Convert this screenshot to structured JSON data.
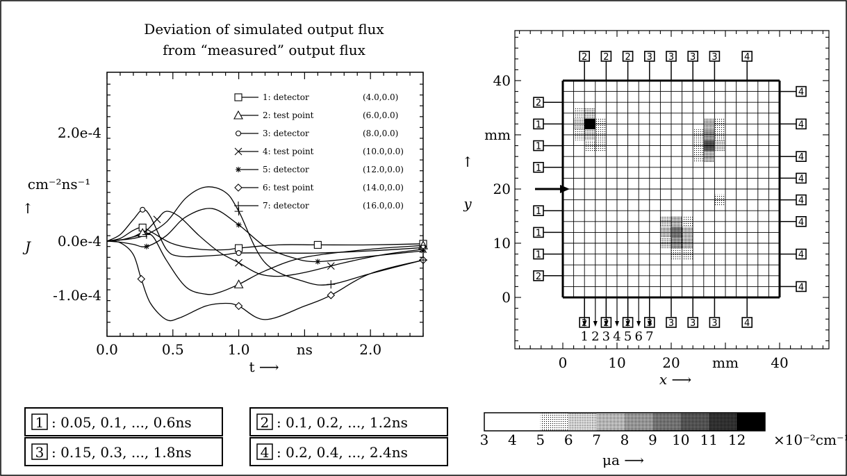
{
  "chart_data": [
    {
      "type": "line",
      "title": "Deviation of simulated output flux",
      "subtitle": "from “measured” output flux",
      "xlabel": "t ⟶",
      "x_unit": "ns",
      "ylabel": "J",
      "y_unit": "cm⁻²ns⁻¹",
      "y_arrow": "↑",
      "xlim": [
        0.0,
        2.4
      ],
      "ylim": [
        -0.000176,
        0.000312
      ],
      "x_ticks": [
        {
          "value": 0.0,
          "label": "0.0"
        },
        {
          "value": 0.5,
          "label": "0.5"
        },
        {
          "value": 1.0,
          "label": "1.0"
        },
        {
          "value": 1.5,
          "label": "ns"
        },
        {
          "value": 2.0,
          "label": "2.0"
        }
      ],
      "y_ticks": [
        {
          "value": 0.0002,
          "label": "2.0e-4"
        },
        {
          "value": 0.0,
          "label": "0.0e-4"
        },
        {
          "value": -0.0001,
          "label": "-1.0e-4"
        }
      ],
      "legend_position": "top-right",
      "series": [
        {
          "name": "1: detector (4.0,0.0)",
          "marker": "square",
          "x": [
            0.0,
            0.1,
            0.2,
            0.27,
            0.35,
            0.5,
            0.7,
            0.9,
            1.0,
            1.3,
            1.6,
            2.0,
            2.4
          ],
          "y": [
            0.0,
            5e-06,
            2e-05,
            2.5e-05,
            1.5e-05,
            -5e-06,
            -1.5e-05,
            -1.6e-05,
            -1.3e-05,
            -7e-06,
            -7e-06,
            -7e-06,
            -5e-06
          ]
        },
        {
          "name": "2: test point (6.0,0.0)",
          "marker": "triangle",
          "x": [
            0.0,
            0.1,
            0.2,
            0.27,
            0.35,
            0.45,
            0.6,
            0.75,
            0.85,
            1.0,
            1.2,
            1.5,
            2.0,
            2.4
          ],
          "y": [
            0.0,
            2e-06,
            8e-06,
            1.5e-05,
            8e-06,
            -3.5e-05,
            -8.5e-05,
            -9.8e-05,
            -9.5e-05,
            -8e-05,
            -5.5e-05,
            -3e-05,
            -1.5e-05,
            -8e-06
          ]
        },
        {
          "name": "3: detector (8.0,0.0)",
          "marker": "circle",
          "x": [
            0.0,
            0.1,
            0.2,
            0.27,
            0.33,
            0.45,
            0.55,
            0.7,
            0.9,
            1.0,
            1.3,
            1.6,
            2.0,
            2.4
          ],
          "y": [
            0.0,
            1.2e-05,
            4e-05,
            5.8e-05,
            4.5e-05,
            -1.5e-05,
            -2.8e-05,
            -2.8e-05,
            -2.5e-05,
            -2.2e-05,
            -2.2e-05,
            -2.2e-05,
            -1.8e-05,
            -1.2e-05
          ]
        },
        {
          "name": "4: test point (10.0,0.0)",
          "marker": "x",
          "x": [
            0.0,
            0.1,
            0.2,
            0.28,
            0.38,
            0.45,
            0.55,
            0.7,
            0.85,
            1.0,
            1.15,
            1.3,
            1.5,
            1.8,
            2.1,
            2.4
          ],
          "y": [
            0.0,
            2e-06,
            8e-06,
            1.5e-05,
            4e-05,
            5.5e-05,
            4.5e-05,
            1e-05,
            -2e-05,
            -4e-05,
            -6e-05,
            -6.5e-05,
            -5.8e-05,
            -4e-05,
            -2.5e-05,
            -1.5e-05
          ]
        },
        {
          "name": "5: detector (12.0,0.0)",
          "marker": "asterisk",
          "x": [
            0.0,
            0.1,
            0.2,
            0.3,
            0.45,
            0.6,
            0.8,
            1.0,
            1.2,
            1.4,
            1.6,
            2.0,
            2.4
          ],
          "y": [
            0.0,
            -2e-06,
            -6e-06,
            -1e-05,
            1e-05,
            4.5e-05,
            6e-05,
            3e-05,
            -1e-05,
            -3e-05,
            -3.8e-05,
            -2.8e-05,
            -1.8e-05
          ]
        },
        {
          "name": "6: test point (14.0,0.0)",
          "marker": "diamond",
          "x": [
            0.0,
            0.1,
            0.2,
            0.26,
            0.33,
            0.45,
            0.55,
            0.75,
            0.9,
            1.0,
            1.2,
            1.5,
            1.7,
            2.0,
            2.4
          ],
          "y": [
            0.0,
            -3e-06,
            -2.5e-05,
            -7e-05,
            -0.000115,
            -0.000145,
            -0.000142,
            -0.00012,
            -0.000115,
            -0.00012,
            -0.000145,
            -0.00012,
            -0.0001,
            -6e-05,
            -3.5e-05
          ]
        },
        {
          "name": "7: detector (16.0,0.0)",
          "marker": "plus",
          "x": [
            0.0,
            0.1,
            0.2,
            0.3,
            0.45,
            0.6,
            0.75,
            0.9,
            1.0,
            1.2,
            1.5,
            1.7,
            2.0,
            2.4
          ],
          "y": [
            0.0,
            2e-06,
            5e-06,
            1.2e-05,
            3.5e-05,
            8e-05,
            0.0001,
            9e-05,
            5.5e-05,
            -4e-05,
            -7.5e-05,
            -8e-05,
            -6e-05,
            -3.5e-05
          ]
        }
      ]
    },
    {
      "type": "heatmap",
      "xlabel": "x ⟶",
      "ylabel": "y",
      "y_arrow": "↑",
      "x_unit": "mm",
      "y_unit": "mm",
      "xlim": [
        -9,
        49
      ],
      "ylim": [
        -9,
        50
      ],
      "x_ticks": [
        {
          "value": 0,
          "label": "0"
        },
        {
          "value": 10,
          "label": "10"
        },
        {
          "value": 20,
          "label": "20"
        },
        {
          "value": 30,
          "label": "mm"
        },
        {
          "value": 40,
          "label": "40"
        }
      ],
      "y_ticks": [
        {
          "value": 40,
          "label": "40"
        },
        {
          "value": 30,
          "label": "mm"
        },
        {
          "value": 20,
          "label": "20"
        },
        {
          "value": 10,
          "label": "10"
        },
        {
          "value": 0,
          "label": "0"
        }
      ],
      "grid": {
        "cell_size": 2,
        "nx": 20,
        "ny": 20
      },
      "source_y": 20,
      "test_point_labels": [
        {
          "x": 4,
          "label": "1"
        },
        {
          "x": 6,
          "label": "2"
        },
        {
          "x": 8,
          "label": "3"
        },
        {
          "x": 10,
          "label": "4"
        },
        {
          "x": 12,
          "label": "5"
        },
        {
          "x": 14,
          "label": "6"
        },
        {
          "x": 16,
          "label": "7"
        }
      ],
      "detectors_top": [
        {
          "x": 4,
          "label": "2"
        },
        {
          "x": 8,
          "label": "2"
        },
        {
          "x": 12,
          "label": "2"
        },
        {
          "x": 16,
          "label": "3"
        },
        {
          "x": 20,
          "label": "3"
        },
        {
          "x": 24,
          "label": "3"
        },
        {
          "x": 28,
          "label": "3"
        },
        {
          "x": 34,
          "label": "4"
        }
      ],
      "detectors_bottom": [
        {
          "x": 4,
          "label": "2"
        },
        {
          "x": 8,
          "label": "2"
        },
        {
          "x": 12,
          "label": "2"
        },
        {
          "x": 16,
          "label": "3"
        },
        {
          "x": 20,
          "label": "3"
        },
        {
          "x": 24,
          "label": "3"
        },
        {
          "x": 28,
          "label": "3"
        },
        {
          "x": 34,
          "label": "4"
        }
      ],
      "detectors_left": [
        {
          "y": 36,
          "label": "2"
        },
        {
          "y": 32,
          "label": "1"
        },
        {
          "y": 28,
          "label": "1"
        },
        {
          "y": 24,
          "label": "1"
        },
        {
          "y": 16,
          "label": "1"
        },
        {
          "y": 12,
          "label": "1"
        },
        {
          "y": 8,
          "label": "1"
        },
        {
          "y": 4,
          "label": "2"
        }
      ],
      "detectors_right": [
        {
          "y": 38,
          "label": "4"
        },
        {
          "y": 32,
          "label": "4"
        },
        {
          "y": 26,
          "label": "4"
        },
        {
          "y": 22,
          "label": "4"
        },
        {
          "y": 18,
          "label": "4"
        },
        {
          "y": 14,
          "label": "4"
        },
        {
          "y": 8,
          "label": "4"
        },
        {
          "y": 2,
          "label": "4"
        }
      ],
      "cells": [
        {
          "x": 3,
          "y": 34,
          "mu": 5
        },
        {
          "x": 5,
          "y": 34,
          "mu": 6
        },
        {
          "x": 3,
          "y": 32,
          "mu": 6
        },
        {
          "x": 5,
          "y": 32,
          "mu": 12
        },
        {
          "x": 7,
          "y": 32,
          "mu": 5
        },
        {
          "x": 3,
          "y": 30,
          "mu": 5
        },
        {
          "x": 5,
          "y": 30,
          "mu": 6
        },
        {
          "x": 7,
          "y": 30,
          "mu": 5
        },
        {
          "x": 5,
          "y": 28,
          "mu": 5
        },
        {
          "x": 7,
          "y": 28,
          "mu": 5
        },
        {
          "x": 27,
          "y": 32,
          "mu": 7
        },
        {
          "x": 29,
          "y": 32,
          "mu": 5
        },
        {
          "x": 25,
          "y": 30,
          "mu": 5
        },
        {
          "x": 27,
          "y": 30,
          "mu": 8
        },
        {
          "x": 29,
          "y": 30,
          "mu": 5
        },
        {
          "x": 25,
          "y": 28,
          "mu": 5
        },
        {
          "x": 27,
          "y": 28,
          "mu": 10
        },
        {
          "x": 29,
          "y": 28,
          "mu": 6
        },
        {
          "x": 25,
          "y": 26,
          "mu": 5
        },
        {
          "x": 27,
          "y": 26,
          "mu": 7
        },
        {
          "x": 29,
          "y": 18,
          "mu": 5
        },
        {
          "x": 19,
          "y": 14,
          "mu": 6
        },
        {
          "x": 21,
          "y": 14,
          "mu": 7
        },
        {
          "x": 23,
          "y": 14,
          "mu": 5
        },
        {
          "x": 19,
          "y": 12,
          "mu": 7
        },
        {
          "x": 21,
          "y": 12,
          "mu": 9
        },
        {
          "x": 23,
          "y": 12,
          "mu": 7
        },
        {
          "x": 19,
          "y": 10,
          "mu": 6
        },
        {
          "x": 21,
          "y": 10,
          "mu": 8
        },
        {
          "x": 23,
          "y": 10,
          "mu": 7
        },
        {
          "x": 21,
          "y": 8,
          "mu": 5
        },
        {
          "x": 23,
          "y": 8,
          "mu": 5
        }
      ]
    },
    {
      "type": "colorbar",
      "label": "μa ⟶",
      "unit_label": "×10⁻²cm⁻¹",
      "ticks": [
        "3",
        "4",
        "5",
        "6",
        "7",
        "8",
        "9",
        "10",
        "11",
        "12"
      ],
      "range": [
        3,
        13
      ]
    }
  ],
  "timing_legend": [
    {
      "id": "1",
      "text": ": 0.05, 0.1, ..., 0.6ns"
    },
    {
      "id": "2",
      "text": ": 0.1, 0.2, ..., 1.2ns"
    },
    {
      "id": "3",
      "text": ": 0.15, 0.3, ..., 1.8ns"
    },
    {
      "id": "4",
      "text": ": 0.2, 0.4, ..., 2.4ns"
    }
  ]
}
